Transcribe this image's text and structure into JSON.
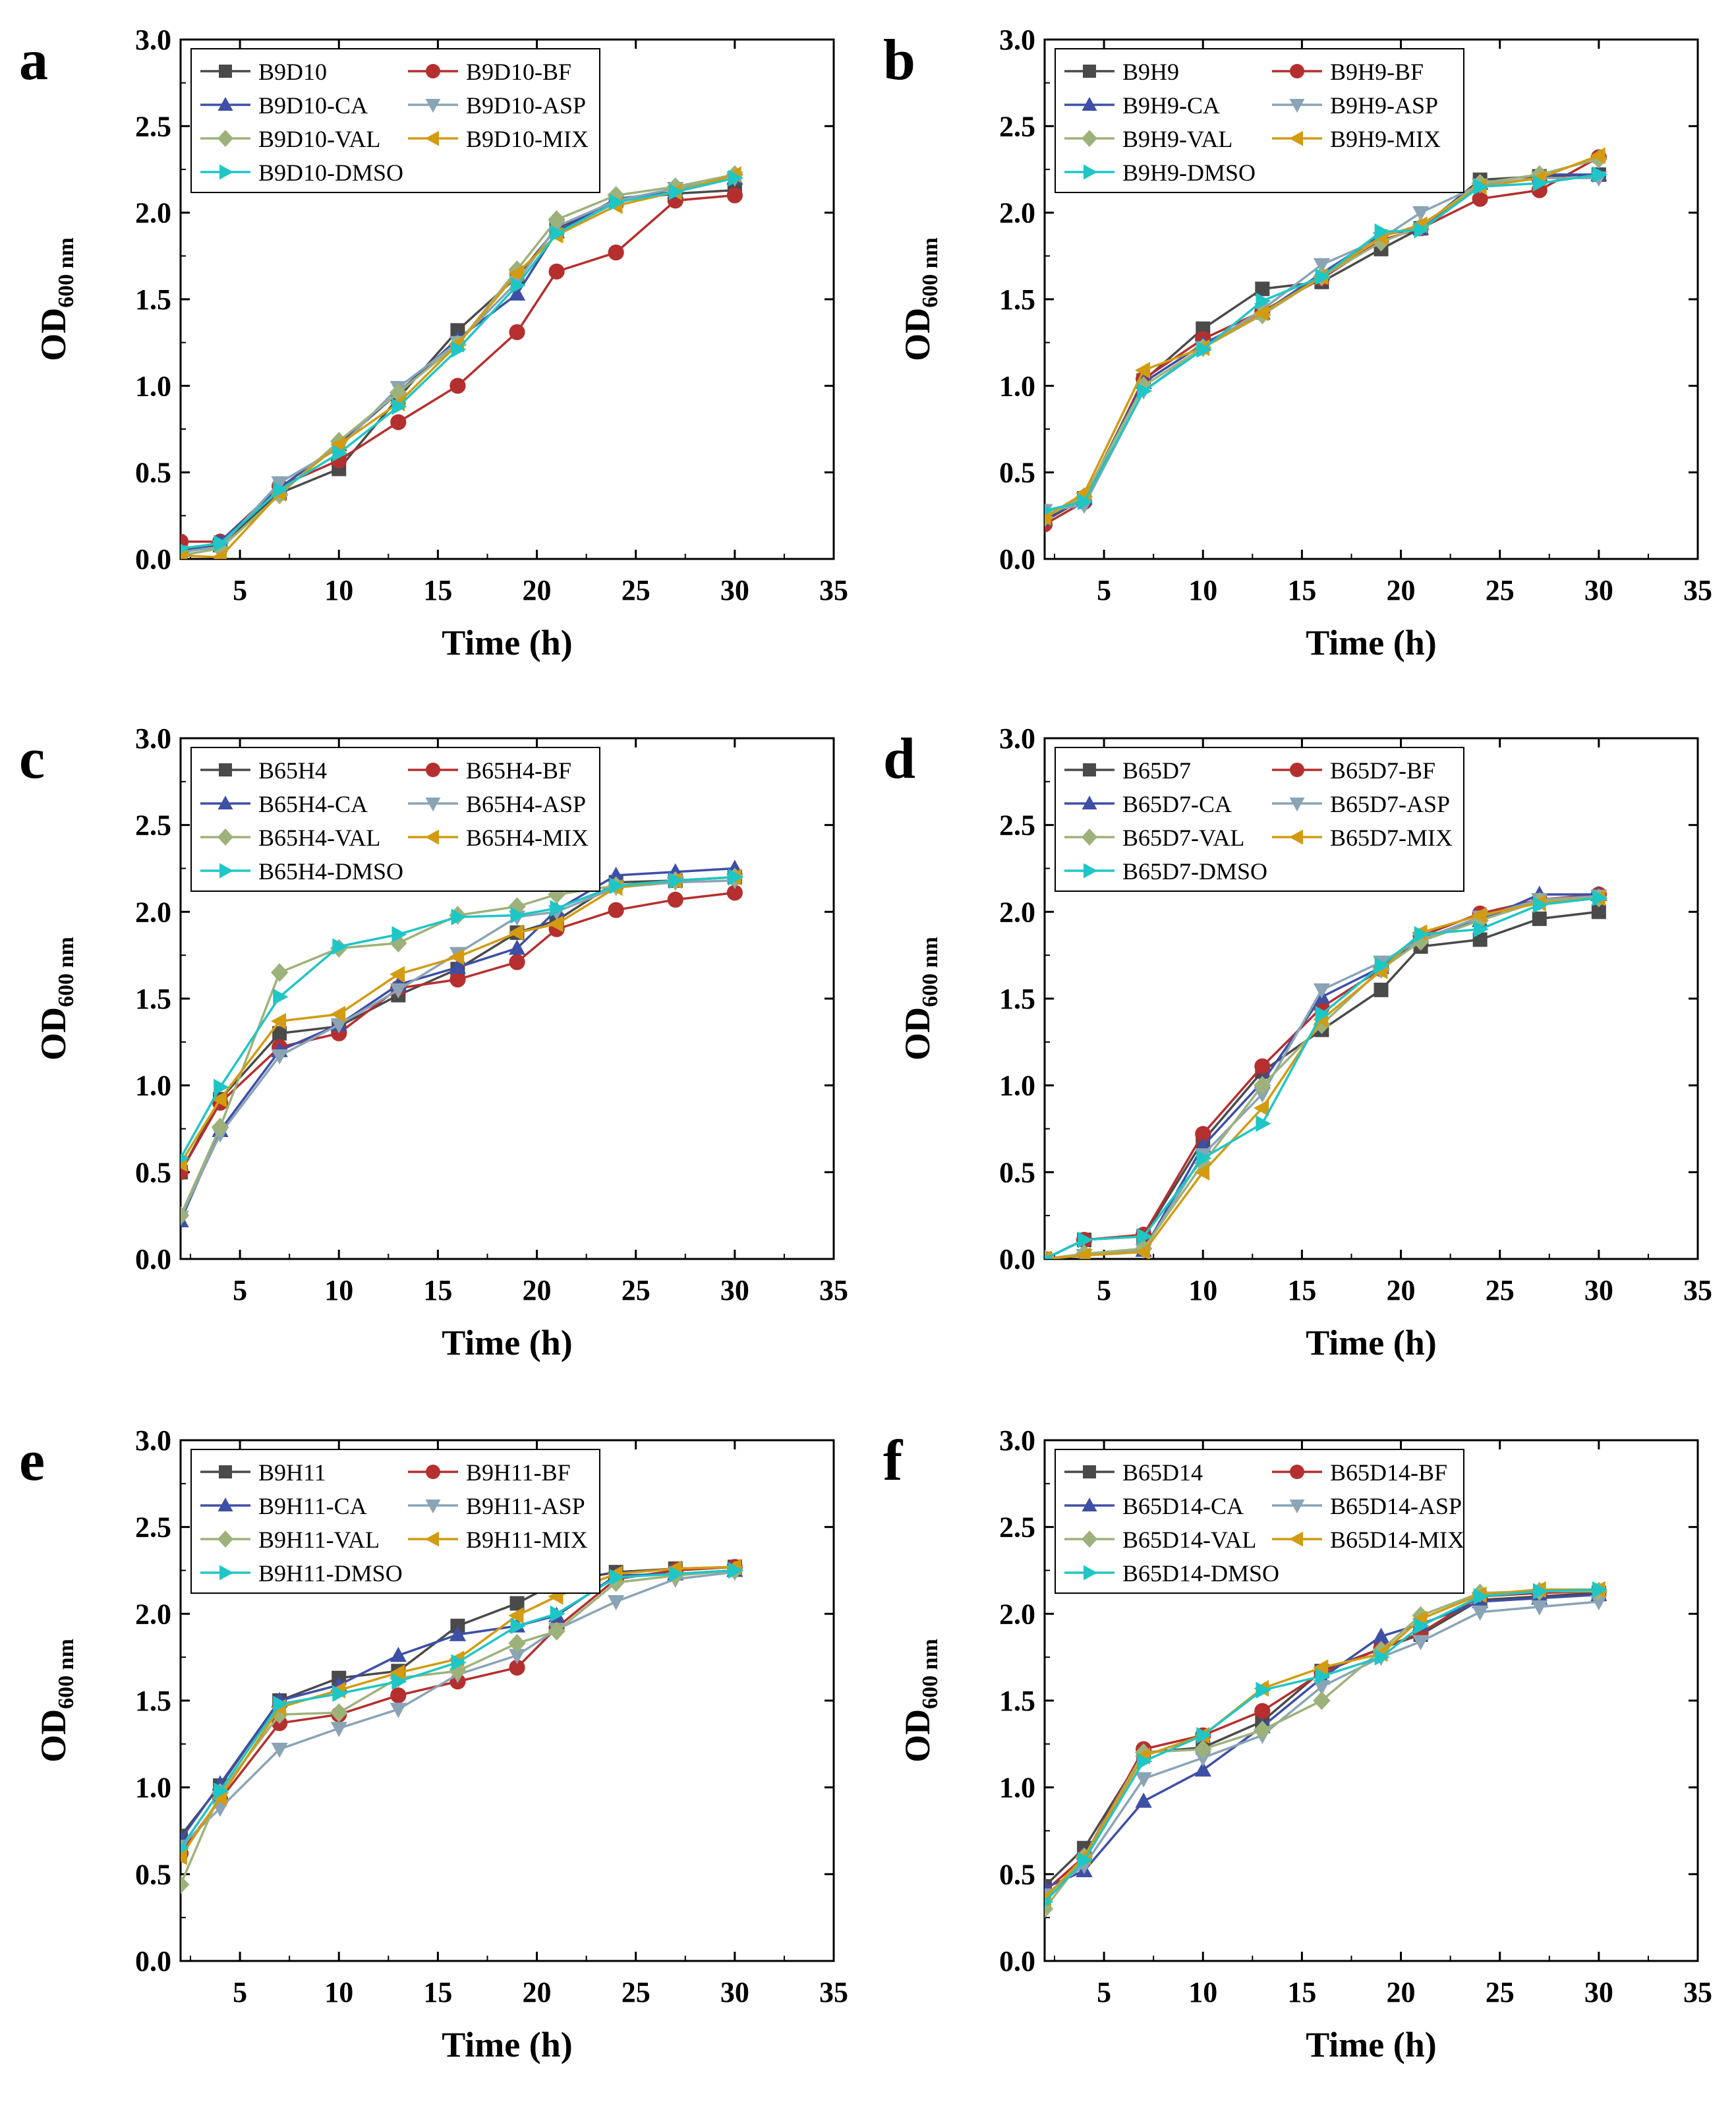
{
  "figure": {
    "colors": {
      "base": "#4a4a4a",
      "BF": "#b52f2f",
      "CA": "#3e4fa6",
      "ASP": "#8aa4b6",
      "VAL": "#9db27a",
      "MIX": "#d29b12",
      "DMSO": "#1fc6c6"
    }
  },
  "chart_data": [
    {
      "type": "line",
      "panel_label": "a",
      "xlabel": "Time (h)",
      "ylabel_main": "OD",
      "ylabel_sub": "600 nm",
      "xlim": [
        2,
        35
      ],
      "ylim": [
        0,
        3
      ],
      "x_ticks": [
        "5",
        "10",
        "15",
        "20",
        "25",
        "30",
        "35"
      ],
      "y_ticks": [
        "0.0",
        "0.5",
        "1.0",
        "1.5",
        "2.0",
        "2.5",
        "3.0"
      ],
      "x": [
        2,
        4,
        7,
        10,
        13,
        16,
        19,
        21,
        24,
        27,
        30
      ],
      "series": [
        {
          "name": "B9D10",
          "key": "base",
          "marker": "square",
          "values": [
            0.05,
            0.08,
            0.38,
            0.52,
            0.93,
            1.32,
            1.63,
            1.91,
            2.07,
            2.11,
            2.13
          ]
        },
        {
          "name": "B9D10-BF",
          "key": "BF",
          "marker": "circle",
          "values": [
            0.1,
            0.1,
            0.42,
            0.57,
            0.79,
            1.0,
            1.31,
            1.66,
            1.77,
            2.07,
            2.1
          ]
        },
        {
          "name": "B9D10-CA",
          "key": "CA",
          "marker": "triangle-up",
          "values": [
            0.03,
            0.1,
            0.41,
            0.66,
            0.96,
            1.27,
            1.53,
            1.89,
            2.08,
            2.12,
            2.2
          ]
        },
        {
          "name": "B9D10-ASP",
          "key": "ASP",
          "marker": "triangle-down",
          "values": [
            0.04,
            0.07,
            0.44,
            0.64,
            0.99,
            1.25,
            1.6,
            1.92,
            2.07,
            2.14,
            2.2
          ]
        },
        {
          "name": "B9D10-VAL",
          "key": "VAL",
          "marker": "diamond",
          "values": [
            0.02,
            0.06,
            0.37,
            0.68,
            0.96,
            1.24,
            1.67,
            1.96,
            2.1,
            2.15,
            2.22
          ]
        },
        {
          "name": "B9D10-MIX",
          "key": "MIX",
          "marker": "triangle-left",
          "values": [
            0.02,
            0.01,
            0.38,
            0.66,
            0.9,
            1.24,
            1.65,
            1.87,
            2.04,
            2.12,
            2.22
          ]
        },
        {
          "name": "B9D10-DMSO",
          "key": "DMSO",
          "marker": "triangle-right",
          "values": [
            0.06,
            0.09,
            0.4,
            0.61,
            0.88,
            1.21,
            1.58,
            1.88,
            2.06,
            2.12,
            2.2
          ]
        }
      ]
    },
    {
      "type": "line",
      "panel_label": "b",
      "xlabel": "Time (h)",
      "ylabel_main": "OD",
      "ylabel_sub": "600 nm",
      "xlim": [
        2,
        35
      ],
      "ylim": [
        0,
        3
      ],
      "x_ticks": [
        "5",
        "10",
        "15",
        "20",
        "25",
        "30",
        "35"
      ],
      "y_ticks": [
        "0.0",
        "0.5",
        "1.0",
        "1.5",
        "2.0",
        "2.5",
        "3.0"
      ],
      "x": [
        2,
        4,
        7,
        10,
        13,
        16,
        19,
        21,
        24,
        27,
        30
      ],
      "series": [
        {
          "name": "B9H9",
          "key": "base",
          "marker": "square",
          "values": [
            0.22,
            0.35,
            1.03,
            1.33,
            1.56,
            1.6,
            1.79,
            1.91,
            2.19,
            2.21,
            2.22
          ]
        },
        {
          "name": "B9H9-BF",
          "key": "BF",
          "marker": "circle",
          "values": [
            0.2,
            0.33,
            1.04,
            1.27,
            1.43,
            1.62,
            1.84,
            1.91,
            2.08,
            2.13,
            2.32
          ]
        },
        {
          "name": "B9H9-CA",
          "key": "CA",
          "marker": "triangle-up",
          "values": [
            0.23,
            0.35,
            1.02,
            1.24,
            1.42,
            1.65,
            1.87,
            1.91,
            2.17,
            2.22,
            2.22
          ]
        },
        {
          "name": "B9H9-ASP",
          "key": "ASP",
          "marker": "triangle-down",
          "values": [
            0.28,
            0.31,
            0.97,
            1.22,
            1.44,
            1.7,
            1.85,
            2.0,
            2.16,
            2.2,
            2.2
          ]
        },
        {
          "name": "B9H9-VAL",
          "key": "VAL",
          "marker": "diamond",
          "values": [
            0.24,
            0.36,
            1.0,
            1.22,
            1.41,
            1.63,
            1.83,
            1.92,
            2.17,
            2.22,
            2.31
          ]
        },
        {
          "name": "B9H9-MIX",
          "key": "MIX",
          "marker": "triangle-left",
          "values": [
            0.24,
            0.38,
            1.09,
            1.22,
            1.42,
            1.63,
            1.86,
            1.93,
            2.15,
            2.2,
            2.33
          ]
        },
        {
          "name": "B9H9-DMSO",
          "key": "DMSO",
          "marker": "triangle-right",
          "values": [
            0.28,
            0.33,
            0.97,
            1.21,
            1.49,
            1.63,
            1.89,
            1.9,
            2.15,
            2.17,
            2.22
          ]
        }
      ]
    },
    {
      "type": "line",
      "panel_label": "c",
      "xlabel": "Time (h)",
      "ylabel_main": "OD",
      "ylabel_sub": "600 nm",
      "xlim": [
        2,
        35
      ],
      "ylim": [
        0,
        3
      ],
      "x_ticks": [
        "5",
        "10",
        "15",
        "20",
        "25",
        "30",
        "35"
      ],
      "y_ticks": [
        "0.0",
        "0.5",
        "1.0",
        "1.5",
        "2.0",
        "2.5",
        "3.0"
      ],
      "x": [
        2,
        4,
        7,
        10,
        13,
        16,
        19,
        21,
        24,
        27,
        30
      ],
      "series": [
        {
          "name": "B65H4",
          "key": "base",
          "marker": "square",
          "values": [
            0.5,
            0.92,
            1.3,
            1.34,
            1.52,
            1.67,
            1.88,
            1.95,
            2.17,
            2.18,
            2.2
          ]
        },
        {
          "name": "B65H4-BF",
          "key": "BF",
          "marker": "circle",
          "values": [
            0.5,
            0.9,
            1.22,
            1.3,
            1.56,
            1.61,
            1.71,
            1.9,
            2.01,
            2.07,
            2.11
          ]
        },
        {
          "name": "B65H4-CA",
          "key": "CA",
          "marker": "triangle-up",
          "values": [
            0.22,
            0.74,
            1.2,
            1.35,
            1.58,
            1.68,
            1.79,
            2.01,
            2.21,
            2.23,
            2.25
          ]
        },
        {
          "name": "B65H4-ASP",
          "key": "ASP",
          "marker": "triangle-down",
          "values": [
            0.24,
            0.72,
            1.17,
            1.35,
            1.55,
            1.76,
            1.97,
            2.0,
            2.14,
            2.17,
            2.18
          ]
        },
        {
          "name": "B65H4-VAL",
          "key": "VAL",
          "marker": "diamond",
          "values": [
            0.25,
            0.76,
            1.65,
            1.79,
            1.82,
            1.98,
            2.03,
            2.1,
            2.15,
            2.18,
            2.2
          ]
        },
        {
          "name": "B65H4-MIX",
          "key": "MIX",
          "marker": "triangle-left",
          "values": [
            0.55,
            0.92,
            1.37,
            1.41,
            1.64,
            1.74,
            1.88,
            1.93,
            2.14,
            2.18,
            2.2
          ]
        },
        {
          "name": "B65H4-DMSO",
          "key": "DMSO",
          "marker": "triangle-right",
          "values": [
            0.58,
            0.99,
            1.51,
            1.8,
            1.87,
            1.97,
            1.98,
            2.02,
            2.15,
            2.18,
            2.2
          ]
        }
      ]
    },
    {
      "type": "line",
      "panel_label": "d",
      "xlabel": "Time (h)",
      "ylabel_main": "OD",
      "ylabel_sub": "600 nm",
      "xlim": [
        2,
        35
      ],
      "ylim": [
        0,
        3
      ],
      "x_ticks": [
        "5",
        "10",
        "15",
        "20",
        "25",
        "30",
        "35"
      ],
      "y_ticks": [
        "0.0",
        "0.5",
        "1.0",
        "1.5",
        "2.0",
        "2.5",
        "3.0"
      ],
      "x": [
        2,
        4,
        7,
        10,
        13,
        16,
        19,
        21,
        24,
        27,
        30
      ],
      "series": [
        {
          "name": "B65D7",
          "key": "base",
          "marker": "square",
          "values": [
            0.0,
            0.11,
            0.13,
            0.68,
            1.08,
            1.32,
            1.55,
            1.8,
            1.84,
            1.96,
            2.0
          ]
        },
        {
          "name": "B65D7-BF",
          "key": "BF",
          "marker": "circle",
          "values": [
            0.0,
            0.11,
            0.14,
            0.72,
            1.11,
            1.45,
            1.67,
            1.86,
            1.99,
            2.07,
            2.1
          ]
        },
        {
          "name": "B65D7-CA",
          "key": "CA",
          "marker": "triangle-up",
          "values": [
            0.0,
            0.02,
            0.05,
            0.65,
            1.02,
            1.51,
            1.68,
            1.85,
            1.95,
            2.1,
            2.1
          ]
        },
        {
          "name": "B65D7-ASP",
          "key": "ASP",
          "marker": "triangle-down",
          "values": [
            0.0,
            0.02,
            0.05,
            0.6,
            0.95,
            1.55,
            1.71,
            1.84,
            1.97,
            2.07,
            2.09
          ]
        },
        {
          "name": "B65D7-VAL",
          "key": "VAL",
          "marker": "diamond",
          "values": [
            0.0,
            0.03,
            0.06,
            0.55,
            1.0,
            1.35,
            1.67,
            1.83,
            1.95,
            2.06,
            2.08
          ]
        },
        {
          "name": "B65D7-MIX",
          "key": "MIX",
          "marker": "triangle-left",
          "values": [
            0.0,
            0.02,
            0.04,
            0.5,
            0.87,
            1.38,
            1.66,
            1.88,
            1.98,
            2.05,
            2.08
          ]
        },
        {
          "name": "B65D7-DMSO",
          "key": "DMSO",
          "marker": "triangle-right",
          "values": [
            0.0,
            0.11,
            0.13,
            0.58,
            0.78,
            1.41,
            1.69,
            1.87,
            1.9,
            2.04,
            2.08
          ]
        }
      ]
    },
    {
      "type": "line",
      "panel_label": "e",
      "xlabel": "Time (h)",
      "ylabel_main": "OD",
      "ylabel_sub": "600 nm",
      "xlim": [
        2,
        35
      ],
      "ylim": [
        0,
        3
      ],
      "x_ticks": [
        "5",
        "10",
        "15",
        "20",
        "25",
        "30",
        "35"
      ],
      "y_ticks": [
        "0.0",
        "0.5",
        "1.0",
        "1.5",
        "2.0",
        "2.5",
        "3.0"
      ],
      "x": [
        2,
        4,
        7,
        10,
        13,
        16,
        19,
        21,
        24,
        27,
        30
      ],
      "series": [
        {
          "name": "B9H11",
          "key": "base",
          "marker": "square",
          "values": [
            0.72,
            1.01,
            1.5,
            1.63,
            1.67,
            1.93,
            2.06,
            2.18,
            2.24,
            2.26,
            2.27
          ]
        },
        {
          "name": "B9H11-BF",
          "key": "BF",
          "marker": "circle",
          "values": [
            0.62,
            0.93,
            1.37,
            1.42,
            1.53,
            1.61,
            1.69,
            1.92,
            2.2,
            2.25,
            2.27
          ]
        },
        {
          "name": "B9H11-CA",
          "key": "CA",
          "marker": "triangle-up",
          "values": [
            0.7,
            1.02,
            1.5,
            1.59,
            1.76,
            1.88,
            1.93,
            1.99,
            2.22,
            2.23,
            2.25
          ]
        },
        {
          "name": "B9H11-ASP",
          "key": "ASP",
          "marker": "triangle-down",
          "values": [
            0.66,
            0.88,
            1.22,
            1.34,
            1.45,
            1.65,
            1.76,
            1.91,
            2.07,
            2.2,
            2.24
          ]
        },
        {
          "name": "B9H11-VAL",
          "key": "VAL",
          "marker": "diamond",
          "values": [
            0.44,
            0.97,
            1.42,
            1.43,
            1.63,
            1.67,
            1.83,
            1.9,
            2.18,
            2.22,
            2.25
          ]
        },
        {
          "name": "B9H11-MIX",
          "key": "MIX",
          "marker": "triangle-left",
          "values": [
            0.6,
            0.94,
            1.46,
            1.56,
            1.66,
            1.74,
            1.99,
            2.1,
            2.23,
            2.26,
            2.27
          ]
        },
        {
          "name": "B9H11-DMSO",
          "key": "DMSO",
          "marker": "triangle-right",
          "values": [
            0.65,
            0.98,
            1.48,
            1.54,
            1.61,
            1.72,
            1.93,
            2.0,
            2.21,
            2.23,
            2.25
          ]
        }
      ]
    },
    {
      "type": "line",
      "panel_label": "f",
      "xlabel": "Time (h)",
      "ylabel_main": "OD",
      "ylabel_sub": "600 nm",
      "xlim": [
        2,
        35
      ],
      "ylim": [
        0,
        3
      ],
      "x_ticks": [
        "5",
        "10",
        "15",
        "20",
        "25",
        "30",
        "35"
      ],
      "y_ticks": [
        "0.0",
        "0.5",
        "1.0",
        "1.5",
        "2.0",
        "2.5",
        "3.0"
      ],
      "x": [
        2,
        4,
        7,
        10,
        13,
        16,
        19,
        21,
        24,
        27,
        30
      ],
      "series": [
        {
          "name": "B65D14",
          "key": "base",
          "marker": "square",
          "values": [
            0.43,
            0.65,
            1.2,
            1.23,
            1.38,
            1.67,
            1.8,
            1.88,
            2.08,
            2.1,
            2.12
          ]
        },
        {
          "name": "B65D14-BF",
          "key": "BF",
          "marker": "circle",
          "values": [
            0.4,
            0.6,
            1.22,
            1.3,
            1.44,
            1.66,
            1.8,
            1.89,
            2.1,
            2.12,
            2.13
          ]
        },
        {
          "name": "B65D14-CA",
          "key": "CA",
          "marker": "triangle-up",
          "values": [
            0.42,
            0.52,
            0.92,
            1.1,
            1.35,
            1.63,
            1.87,
            1.94,
            2.07,
            2.09,
            2.11
          ]
        },
        {
          "name": "B65D14-ASP",
          "key": "ASP",
          "marker": "triangle-down",
          "values": [
            0.38,
            0.55,
            1.05,
            1.17,
            1.3,
            1.58,
            1.75,
            1.84,
            2.01,
            2.04,
            2.07
          ]
        },
        {
          "name": "B65D14-VAL",
          "key": "VAL",
          "marker": "diamond",
          "values": [
            0.3,
            0.6,
            1.2,
            1.22,
            1.33,
            1.5,
            1.79,
            1.99,
            2.12,
            2.13,
            2.13
          ]
        },
        {
          "name": "B65D14-MIX",
          "key": "MIX",
          "marker": "triangle-left",
          "values": [
            0.36,
            0.6,
            1.18,
            1.3,
            1.57,
            1.69,
            1.77,
            1.97,
            2.11,
            2.14,
            2.14
          ]
        },
        {
          "name": "B65D14-DMSO",
          "key": "DMSO",
          "marker": "triangle-right",
          "values": [
            0.34,
            0.58,
            1.15,
            1.3,
            1.56,
            1.64,
            1.75,
            1.93,
            2.1,
            2.13,
            2.14
          ]
        }
      ]
    }
  ]
}
